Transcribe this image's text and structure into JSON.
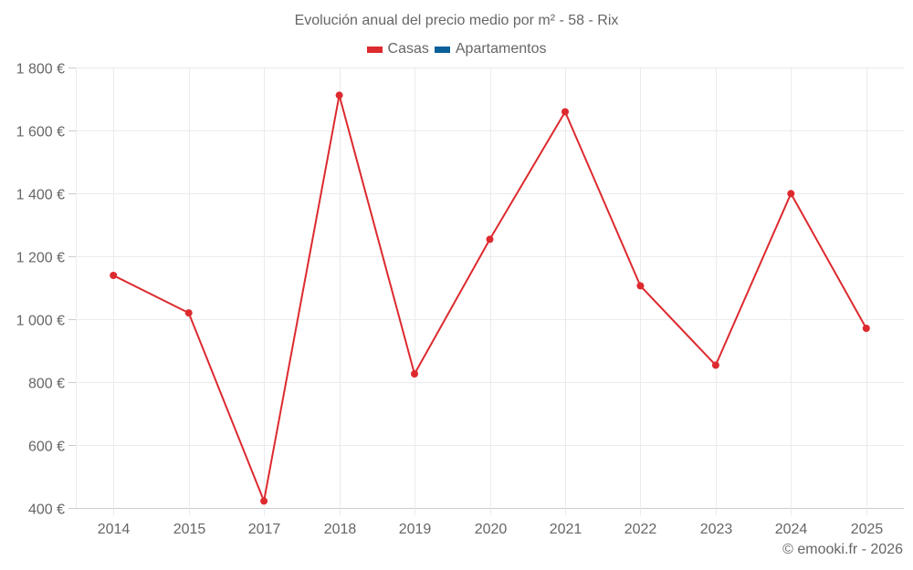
{
  "chart": {
    "title": "Evolución anual del precio medio por m² - 58 - Rix",
    "legend": [
      {
        "label": "Casas",
        "color": "#dd2a2f"
      },
      {
        "label": "Apartamentos",
        "color": "#0a6099"
      }
    ],
    "credit": "© emooki.fr - 2026"
  },
  "chart_data": {
    "type": "line",
    "title": "Evolución anual del precio medio por m² - 58 - Rix",
    "xlabel": "",
    "ylabel": "",
    "categories": [
      "2014",
      "2015",
      "2017",
      "2018",
      "2019",
      "2020",
      "2021",
      "2022",
      "2023",
      "2024",
      "2025"
    ],
    "series": [
      {
        "name": "Casas",
        "color": "#dd2a2f",
        "values": [
          1139,
          1020,
          422,
          1712,
          826,
          1254,
          1659,
          1106,
          854,
          1399,
          971
        ]
      },
      {
        "name": "Apartamentos",
        "color": "#0a6099",
        "values": []
      }
    ],
    "ylim": [
      400,
      1800
    ],
    "yticks": [
      400,
      600,
      800,
      1000,
      1200,
      1400,
      1600,
      1800
    ],
    "ytick_labels": [
      "400 €",
      "600 €",
      "800 €",
      "1 000 €",
      "1 200 €",
      "1 400 €",
      "1 600 €",
      "1 800 €"
    ],
    "grid": true,
    "legend_position": "top"
  }
}
